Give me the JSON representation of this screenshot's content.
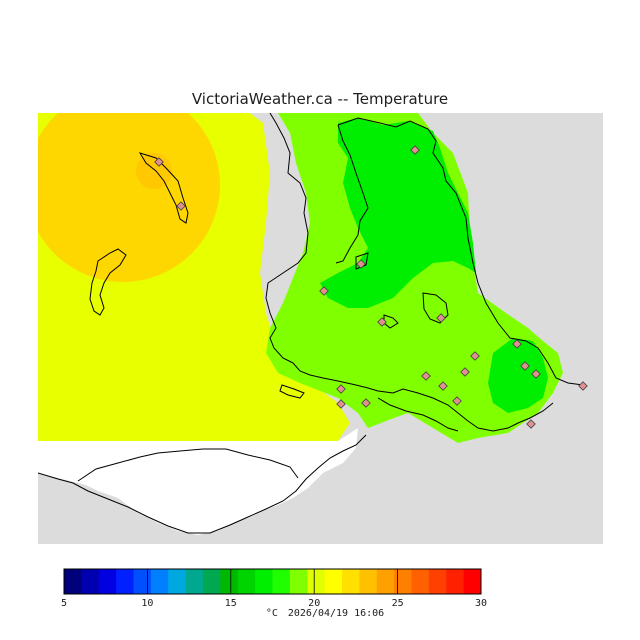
{
  "header": {
    "title": "VictoriaWeather.ca -- Temperature"
  },
  "colors": {
    "land_masked": "#dcdcdc",
    "water_white": "#ffffff",
    "zone_orange": "#ffd700",
    "zone_yellow": "#e8ff00",
    "zone_lightgreen": "#80ff00",
    "zone_green": "#00ee00",
    "coastline": "#000000",
    "station_fill": "#e09090"
  },
  "legend": {
    "min": 5,
    "max": 30,
    "tick_labels": [
      "5",
      "10",
      "15",
      "20",
      "25",
      "30"
    ],
    "colors": [
      "#00007a",
      "#0000b0",
      "#0000e0",
      "#0020ff",
      "#0050ff",
      "#0080ff",
      "#00a8e0",
      "#00a890",
      "#00a850",
      "#00b800",
      "#00d400",
      "#00ee00",
      "#20ff00",
      "#80ff00",
      "#e0ff00",
      "#ffff00",
      "#ffe000",
      "#ffc000",
      "#ffa000",
      "#ff8000",
      "#ff6000",
      "#ff4000",
      "#ff2000",
      "#ff0000"
    ],
    "unit": "°C",
    "timestamp": "2026/04/19 16:06"
  }
}
